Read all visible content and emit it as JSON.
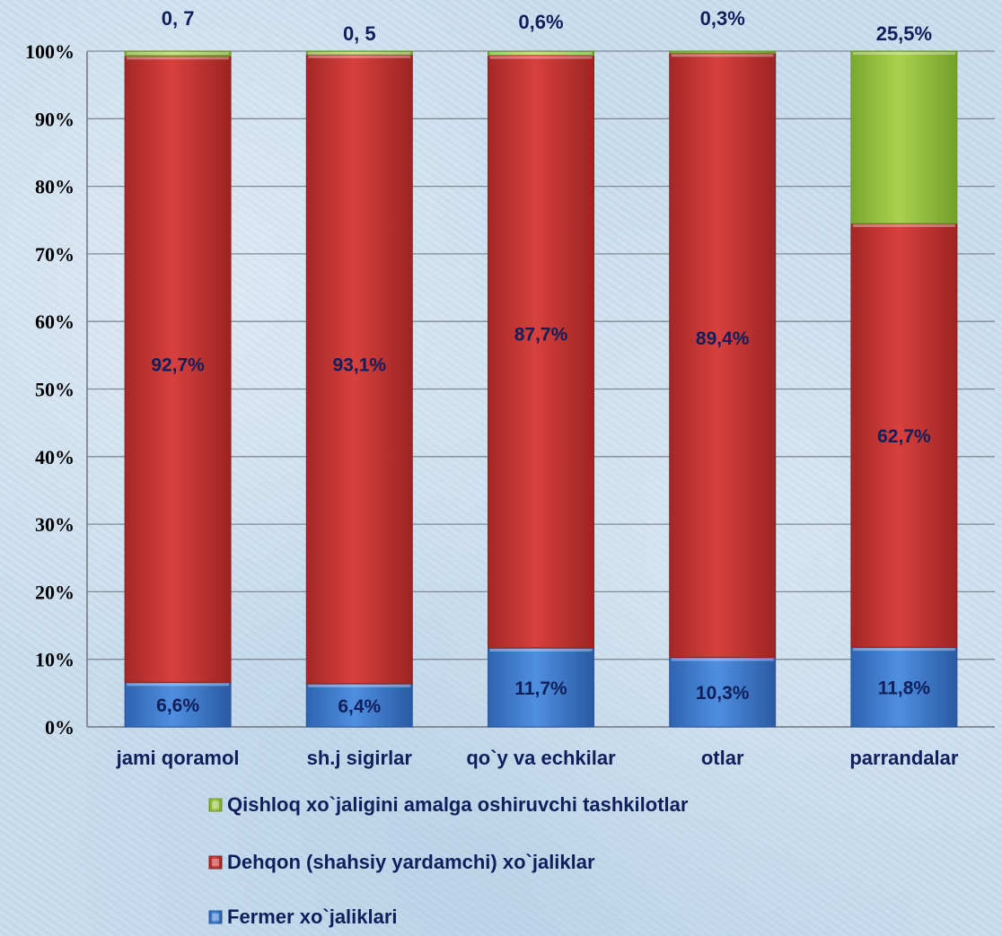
{
  "chart_data": {
    "type": "bar",
    "stacked": true,
    "percent_stacked": true,
    "categories": [
      "jami qoramol",
      "sh.j sigirlar",
      "qo`y va echkilar",
      "otlar",
      "parrandalar"
    ],
    "series": [
      {
        "name": "Fermer xo`jaliklari",
        "values": [
          6.6,
          6.4,
          11.7,
          10.3,
          11.8
        ],
        "labels": [
          "6,6%",
          "6,4%",
          "11,7%",
          "10,3%",
          "11,8%"
        ],
        "color": "#3f7fd4"
      },
      {
        "name": "Dehqon (shahsiy yardamchi) xo`jaliklar",
        "values": [
          92.7,
          93.1,
          87.7,
          89.4,
          62.7
        ],
        "labels": [
          "92,7%",
          "93,1%",
          "87,7%",
          "89,4%",
          "62,7%"
        ],
        "color": "#c0312f"
      },
      {
        "name": "Qishloq xo`jaligini amalga oshiruvchi tashkilotlar",
        "values": [
          0.7,
          0.5,
          0.6,
          0.3,
          25.5
        ],
        "labels": [
          "0, 7",
          "0, 5",
          "0,6%",
          "0,3%",
          "25,5%"
        ],
        "color": "#8dbd3a"
      }
    ],
    "y_ticks": [
      "0%",
      "10%",
      "20%",
      "30%",
      "40%",
      "50%",
      "60%",
      "70%",
      "80%",
      "90%",
      "100%"
    ],
    "ylim": [
      0,
      100
    ],
    "grid": true,
    "legend_position": "bottom"
  }
}
